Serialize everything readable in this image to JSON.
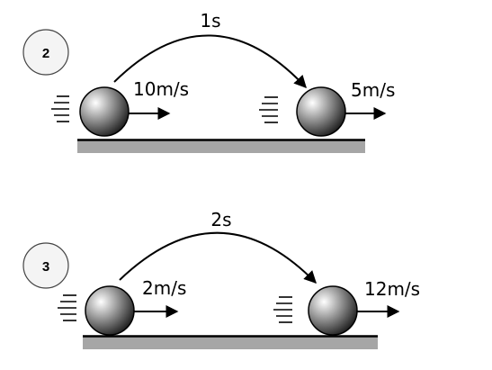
{
  "scenarios": [
    {
      "number": "2",
      "time": "1s",
      "initial_speed": "10m/s",
      "final_speed": "5m/s"
    },
    {
      "number": "3",
      "time": "2s",
      "initial_speed": "2m/s",
      "final_speed": "12m/s"
    }
  ],
  "colors": {
    "ground": "#a6a6a6",
    "ground_line": "#000000",
    "ball_light": "#ffffff",
    "ball_mid": "#8c8c8c",
    "ball_dark": "#1e1e1e",
    "badge_fill": "#f4f4f4",
    "ink": "#000000"
  }
}
